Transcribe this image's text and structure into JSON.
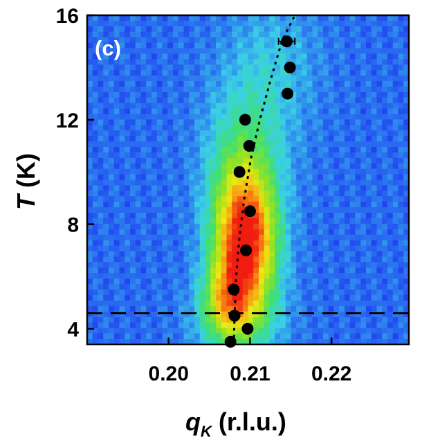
{
  "chart_data": {
    "type": "heatmap",
    "panel_label": "(c)",
    "xlabel_main": "q",
    "xlabel_sub": "K",
    "xlabel_unit": " (r.l.u.)",
    "ylabel_var": "T",
    "ylabel_unit": " (K)",
    "xlim": [
      0.19,
      0.2295
    ],
    "ylim": [
      3.4,
      16
    ],
    "x_ticks": [
      0.2,
      0.21,
      0.22
    ],
    "x_tick_labels": [
      "0.20",
      "0.21",
      "0.22"
    ],
    "y_ticks": [
      4,
      8,
      12,
      16
    ],
    "y_tick_labels": [
      "4",
      "8",
      "12",
      "16"
    ],
    "intensity_map": {
      "background_level": 0.14,
      "blobs": [
        {
          "x": 0.2095,
          "y": 7.2,
          "sx": 0.0026,
          "sy": 1.7,
          "amp": 0.82
        },
        {
          "x": 0.2072,
          "y": 5.2,
          "sx": 0.002,
          "sy": 1.1,
          "amp": 0.35
        },
        {
          "x": 0.209,
          "y": 9.5,
          "sx": 0.003,
          "sy": 1.8,
          "amp": 0.28
        },
        {
          "x": 0.2085,
          "y": 4.4,
          "sx": 0.0035,
          "sy": 1.0,
          "amp": 0.25
        },
        {
          "x": 0.2105,
          "y": 12.0,
          "sx": 0.004,
          "sy": 1.8,
          "amp": 0.12
        },
        {
          "x": 0.213,
          "y": 14.5,
          "sx": 0.004,
          "sy": 1.6,
          "amp": 0.1
        }
      ]
    },
    "series": [
      {
        "x": [
          0.2145,
          0.2149,
          0.2146,
          0.2094,
          0.2099,
          0.2087,
          0.21,
          0.2095,
          0.208,
          0.2081,
          0.2097,
          0.2076
        ],
        "y": [
          15.0,
          14.0,
          13.0,
          12.0,
          11.0,
          10.0,
          8.5,
          7.0,
          5.5,
          4.5,
          4.0,
          3.5
        ],
        "xerr": [
          0.001,
          0.0,
          0.0004,
          0.0,
          0.0,
          0.0,
          0.0,
          0.0,
          0.0,
          0.0,
          0.0,
          0.0
        ]
      }
    ],
    "guide_curve": {
      "x": [
        0.208,
        0.2081,
        0.2083,
        0.2087,
        0.2093,
        0.2101,
        0.2112,
        0.2125,
        0.2139,
        0.2155
      ],
      "y": [
        3.4,
        4.5,
        6.0,
        7.5,
        9.0,
        10.5,
        12.0,
        13.5,
        15.0,
        16.0
      ]
    },
    "reference_line": {
      "y": 4.6,
      "style": "dashed"
    },
    "colormap": [
      "#1010f0",
      "#2a6cf0",
      "#3ad0e8",
      "#3ee070",
      "#9be21e",
      "#f0e814",
      "#f88a12",
      "#f01c10"
    ]
  }
}
